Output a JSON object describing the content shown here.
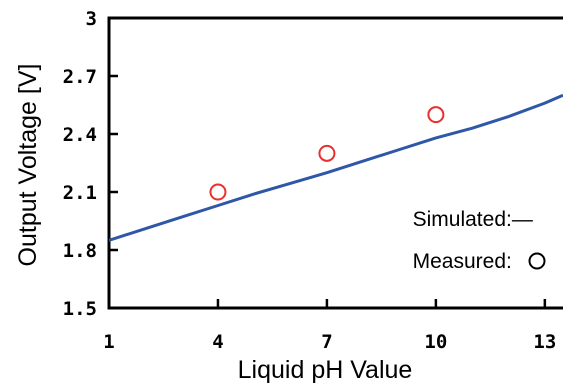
{
  "chart_data": {
    "type": "line",
    "xlabel": "Liquid pH Value",
    "ylabel": "Output Voltage [V]",
    "xlim": [
      1,
      13.5
    ],
    "ylim": [
      1.5,
      3.0
    ],
    "x_ticks": [
      1,
      4,
      7,
      10,
      13
    ],
    "x_tick_labels": [
      "1",
      "4",
      "7",
      "10",
      "13"
    ],
    "y_ticks": [
      1.5,
      1.8,
      2.1,
      2.4,
      2.7,
      3.0
    ],
    "y_tick_labels": [
      "1.5",
      "1.8",
      "2.1",
      "2.4",
      "2.7",
      "3"
    ],
    "grid": false,
    "legend_position": "bottom-right",
    "series": [
      {
        "name": "Simulated",
        "type": "line",
        "color": "#2e57a8",
        "x": [
          1,
          2,
          3,
          4,
          5,
          6,
          7,
          8,
          9,
          10,
          11,
          12,
          13,
          13.5
        ],
        "y": [
          1.85,
          1.91,
          1.97,
          2.03,
          2.09,
          2.145,
          2.2,
          2.26,
          2.32,
          2.38,
          2.43,
          2.49,
          2.56,
          2.6
        ]
      },
      {
        "name": "Measured",
        "type": "scatter",
        "marker": "open-circle",
        "color": "#e8302e",
        "x": [
          4,
          7,
          10
        ],
        "y": [
          2.1,
          2.3,
          2.5
        ]
      }
    ],
    "legend": {
      "simulated_label": "Simulated",
      "simulated_symbol": ":—",
      "measured_label": "Measured",
      "measured_symbol": ":"
    }
  }
}
